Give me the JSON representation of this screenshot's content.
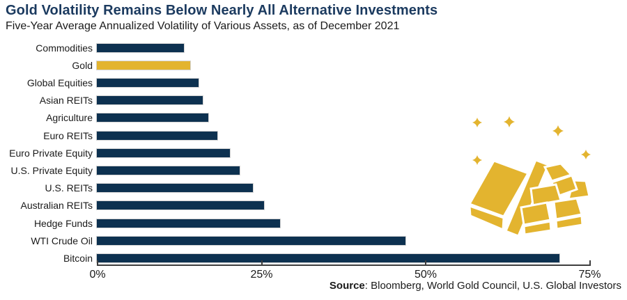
{
  "chart_data": {
    "type": "bar",
    "orientation": "horizontal",
    "title": "Gold Volatility Remains Below Nearly All Alternative Investments",
    "subtitle": "Five-Year Average Annualized Volatility of Various Assets, as of December 2021",
    "categories": [
      "Commodities",
      "Gold",
      "Global Equities",
      "Asian REITs",
      "Agriculture",
      "Euro REITs",
      "Euro Private Equity",
      "U.S. Private Equity",
      "U.S. REITs",
      "Australian REITs",
      "Hedge Funds",
      "WTI Crude Oil",
      "Bitcoin"
    ],
    "values": [
      13.3,
      14.2,
      15.5,
      16.1,
      17.0,
      18.4,
      20.3,
      21.8,
      23.8,
      25.5,
      27.9,
      47.0,
      70.5
    ],
    "unit": "%",
    "highlight_category": "Gold",
    "xlim": [
      0,
      75
    ],
    "x_ticks": [
      {
        "value": 0,
        "label": "0%"
      },
      {
        "value": 25,
        "label": "25%"
      },
      {
        "value": 50,
        "label": "50%"
      },
      {
        "value": 75,
        "label": "75%"
      }
    ],
    "grid": false,
    "legend": false
  },
  "footer": {
    "source_label": "Source",
    "source_text": ": Bloomberg, World Gold Council, U.S. Global Investors"
  },
  "colors": {
    "bar_navy": "#0D3150",
    "gold": "#E3B42F",
    "title_navy": "#1B3A5F",
    "axis": "#3D3D3D",
    "text": "#1A1A1A"
  },
  "illustration": {
    "name": "gold-bars",
    "description": "stack of gold ingots with sparkles"
  }
}
